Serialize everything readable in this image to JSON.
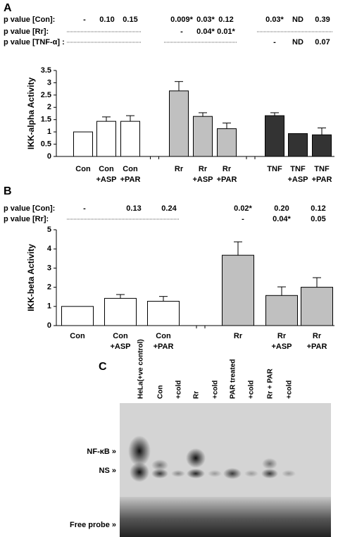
{
  "chart_data": [
    {
      "type": "bar",
      "panel": "A",
      "y_label": "IKK-alpha Activity",
      "categories": [
        "Con",
        "Con\n+ASP",
        "Con\n+PAR",
        "Rr",
        "Rr\n+ASP",
        "Rr\n+PAR",
        "TNF",
        "TNF\n+ASP",
        "TNF\n+PAR"
      ],
      "values": [
        1.0,
        1.43,
        1.43,
        2.67,
        1.63,
        1.13,
        1.66,
        0.93,
        0.88
      ],
      "errors": [
        0,
        0.18,
        0.23,
        0.38,
        0.15,
        0.23,
        0.12,
        0,
        0.28
      ],
      "colors": [
        "#ffffff",
        "#ffffff",
        "#ffffff",
        "#c0c0c0",
        "#c0c0c0",
        "#c0c0c0",
        "#333333",
        "#333333",
        "#333333"
      ],
      "ylim": [
        0,
        3.5
      ],
      "yticks": [
        0,
        0.5,
        1,
        1.5,
        2,
        2.5,
        3,
        3.5
      ],
      "p_values": [
        {
          "label": "p value [Con]:",
          "values": [
            "-",
            "0.10",
            "0.15",
            "0.009*",
            "0.03*",
            "0.12",
            "0.03*",
            "ND",
            "0.39"
          ]
        },
        {
          "label": "p value [Rr]:",
          "values": [
            null,
            null,
            null,
            "-",
            "0.04*",
            "0.01*",
            null,
            null,
            null
          ]
        },
        {
          "label": "p value [TNF-α] :",
          "values": [
            null,
            null,
            null,
            null,
            null,
            null,
            "-",
            "ND",
            "0.07"
          ]
        }
      ]
    },
    {
      "type": "bar",
      "panel": "B",
      "y_label": "IKK-beta Activity",
      "categories": [
        "Con",
        "Con\n+ASP",
        "Con\n+PAR",
        "Rr",
        "Rr\n+ASP",
        "Rr\n+PAR"
      ],
      "values": [
        1.0,
        1.42,
        1.27,
        3.67,
        1.57,
        2.0
      ],
      "errors": [
        0,
        0.2,
        0.25,
        0.7,
        0.45,
        0.5
      ],
      "colors": [
        "#ffffff",
        "#ffffff",
        "#ffffff",
        "#c0c0c0",
        "#c0c0c0",
        "#c0c0c0"
      ],
      "ylim": [
        0,
        5
      ],
      "yticks": [
        0,
        1,
        2,
        3,
        4,
        5
      ],
      "p_values": [
        {
          "label": "p value [Con]:",
          "values": [
            "-",
            "0.13",
            "0.24",
            "0.02*",
            "0.20",
            "0.12"
          ]
        },
        {
          "label": "p value [Rr]:",
          "values": [
            null,
            null,
            null,
            "-",
            "0.04*",
            "0.05"
          ]
        }
      ]
    }
  ],
  "gel": {
    "panel": "C",
    "lanes": [
      "HeLa(+ve control)",
      "Con",
      "+cold",
      "Rr",
      "+cold",
      "PAR treated",
      "+cold",
      "Rr + PAR",
      "+cold"
    ],
    "markers": [
      "NF-κB »",
      "NS »",
      "Free probe »"
    ]
  }
}
